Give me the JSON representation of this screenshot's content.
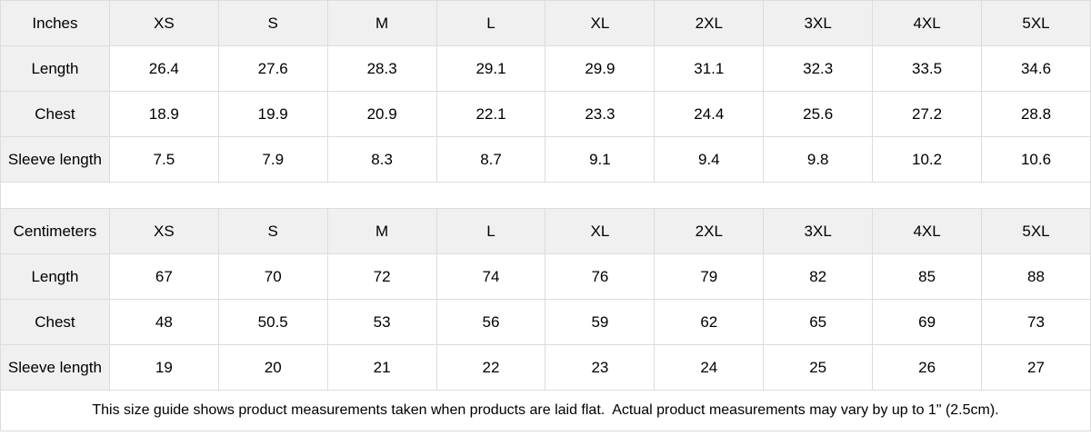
{
  "chart_data": [
    {
      "type": "table",
      "title": "Inches",
      "columns": [
        "Inches",
        "XS",
        "S",
        "M",
        "L",
        "XL",
        "2XL",
        "3XL",
        "4XL",
        "5XL"
      ],
      "rows": [
        [
          "Length",
          "26.4",
          "27.6",
          "28.3",
          "29.1",
          "29.9",
          "31.1",
          "32.3",
          "33.5",
          "34.6"
        ],
        [
          "Chest",
          "18.9",
          "19.9",
          "20.9",
          "22.1",
          "23.3",
          "24.4",
          "25.6",
          "27.2",
          "28.8"
        ],
        [
          "Sleeve length",
          "7.5",
          "7.9",
          "8.3",
          "8.7",
          "9.1",
          "9.4",
          "9.8",
          "10.2",
          "10.6"
        ]
      ]
    },
    {
      "type": "table",
      "title": "Centimeters",
      "columns": [
        "Centimeters",
        "XS",
        "S",
        "M",
        "L",
        "XL",
        "2XL",
        "3XL",
        "4XL",
        "5XL"
      ],
      "rows": [
        [
          "Length",
          "67",
          "70",
          "72",
          "74",
          "76",
          "79",
          "82",
          "85",
          "88"
        ],
        [
          "Chest",
          "48",
          "50.5",
          "53",
          "56",
          "59",
          "62",
          "65",
          "69",
          "73"
        ],
        [
          "Sleeve length",
          "19",
          "20",
          "21",
          "22",
          "23",
          "24",
          "25",
          "26",
          "27"
        ]
      ]
    }
  ],
  "footer": {
    "note": "This size guide shows product measurements taken when products are laid flat.  Actual product measurements may vary by up to 1\" (2.5cm)."
  },
  "colors": {
    "header_bg": "#f0f0f0",
    "row_label_bg": "#f0f0f0",
    "cell_bg": "#ffffff",
    "border": "#dcdcdc",
    "text": "#000000"
  }
}
